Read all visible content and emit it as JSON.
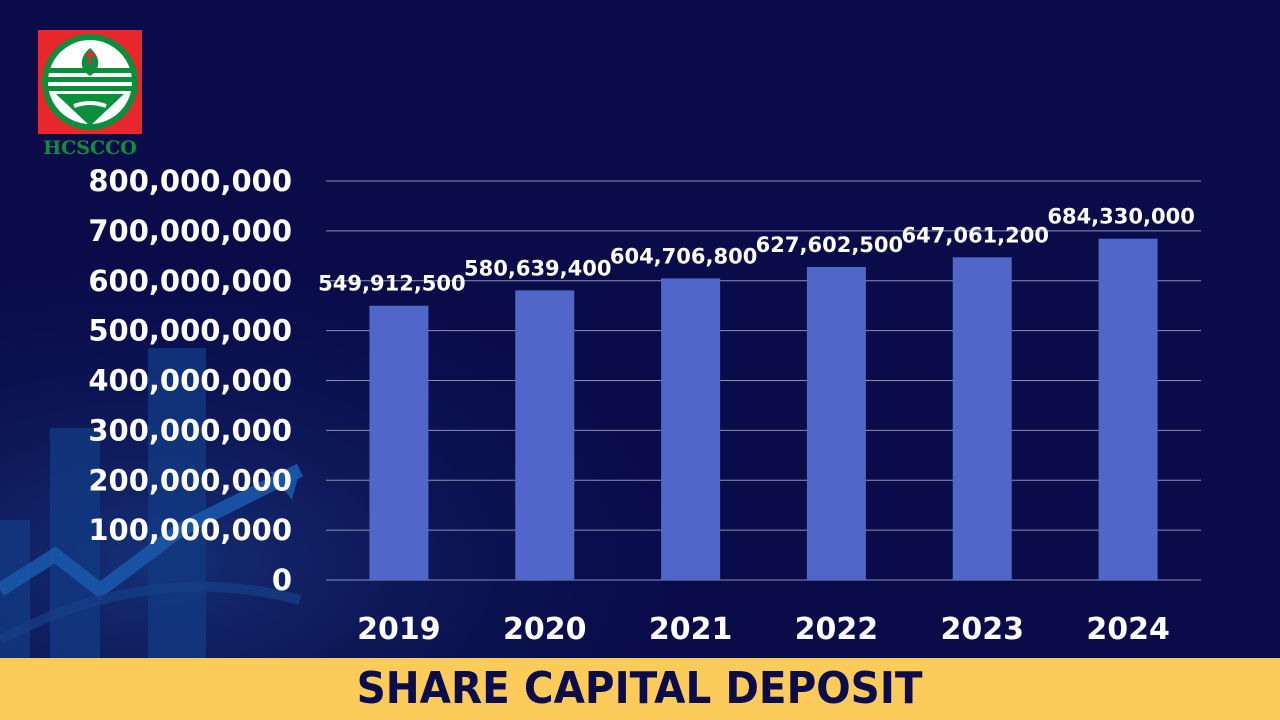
{
  "logo": {
    "text": "HCSCCO",
    "icon": "hcscco-logo-icon"
  },
  "colors": {
    "background": "#0a0c4a",
    "bar": "#5166c9",
    "grid": "#8a8fb3",
    "title_bar": "#fccb5a",
    "title_text": "#0b0c4b",
    "logo_red": "#e8262b",
    "logo_green": "#0b8f3c"
  },
  "chart_data": {
    "type": "bar",
    "title": "SHARE CAPITAL DEPOSIT",
    "categories": [
      "2019",
      "2020",
      "2021",
      "2022",
      "2023",
      "2024"
    ],
    "values": [
      549912500,
      580639400,
      604706800,
      627602500,
      647061200,
      684330000
    ],
    "data_labels": [
      "549,912,500",
      "580,639,400",
      "604,706,800",
      "627,602,500",
      "647,061,200",
      "684,330,000"
    ],
    "ylim": [
      0,
      800000000
    ],
    "yticks": [
      0,
      100000000,
      200000000,
      300000000,
      400000000,
      500000000,
      600000000,
      700000000,
      800000000
    ],
    "ytick_labels": [
      "0",
      "100,000,000",
      "200,000,000",
      "300,000,000",
      "400,000,000",
      "500,000,000",
      "600,000,000",
      "700,000,000",
      "800,000,000"
    ],
    "grid": true,
    "legend": "none"
  }
}
